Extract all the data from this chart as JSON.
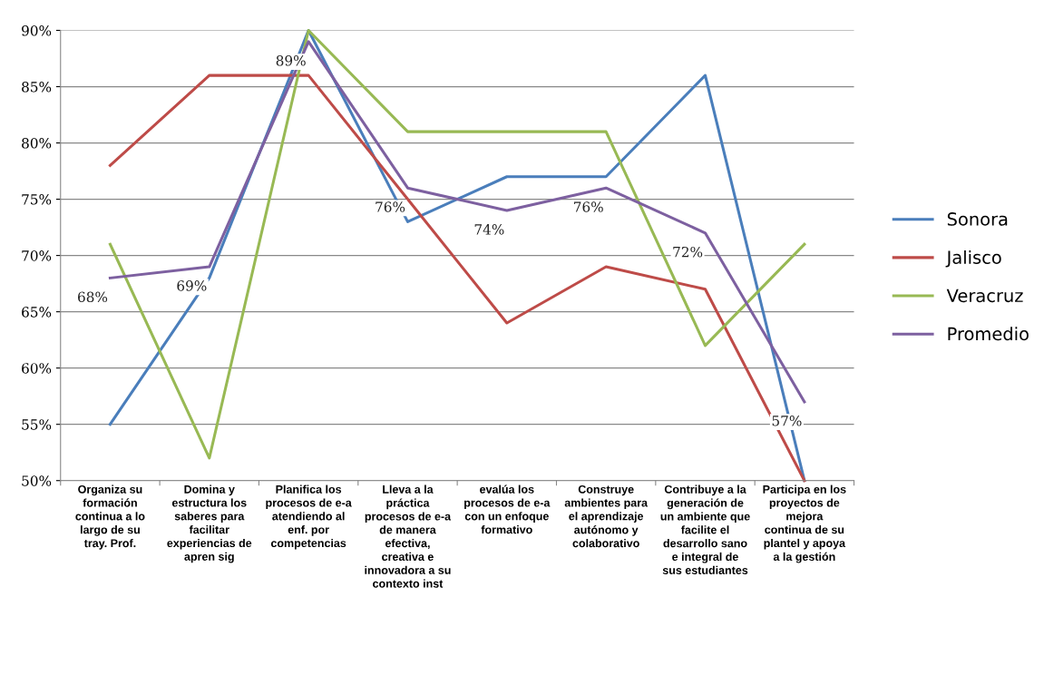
{
  "chart_data": {
    "type": "line",
    "categories": [
      "Organiza su\nformación\ncontinua a lo\nlargo de su\ntray. Prof.",
      "Domina y\nestructura los\nsaberes para\nfacilitar\nexperiencias de\napren sig",
      "Planifica los\nprocesos de e-a\natendiendo al\nenf. por\ncompetencias",
      "Lleva a la\npráctica\nprocesos de e-a\nde manera\nefectiva,\ncreativa e\ninnovadora a su\ncontexto inst",
      "evalúa los\nprocesos de e-a\ncon un enfoque\nformativo",
      "Construye\nambientes para\nel aprendizaje\nautónomo y\ncolaborativo",
      "Contribuye a la\ngeneración de\nun ambiente que\nfacilite el\ndesarrollo sano\ne integral de\nsus estudiantes",
      "Participa en los\nproyectos de\nmejora\ncontinua de su\nplantel y apoya\na la gestión"
    ],
    "series": [
      {
        "name": "Sonora",
        "color": "#4a7ebb",
        "values": [
          55,
          68,
          90,
          73,
          77,
          77,
          86,
          50
        ]
      },
      {
        "name": "Jalisco",
        "color": "#be4b48",
        "values": [
          78,
          86,
          86,
          75,
          64,
          69,
          67,
          50
        ]
      },
      {
        "name": "Veracruz",
        "color": "#98b954",
        "values": [
          71,
          52,
          90,
          81,
          81,
          81,
          62,
          71
        ]
      },
      {
        "name": "Promedio",
        "color": "#7d60a0",
        "values": [
          68,
          69,
          89,
          76,
          74,
          76,
          72,
          57
        ],
        "value_labels": [
          "68%",
          "69%",
          "89%",
          "76%",
          "74%",
          "76%",
          "72%",
          "57%"
        ]
      }
    ],
    "ylim": [
      50,
      90
    ],
    "yticks": [
      {
        "value": 50,
        "label": "50%"
      },
      {
        "value": 55,
        "label": "55%"
      },
      {
        "value": 60,
        "label": "60%"
      },
      {
        "value": 65,
        "label": "65%"
      },
      {
        "value": 70,
        "label": "70%"
      },
      {
        "value": 75,
        "label": "75%"
      },
      {
        "value": 80,
        "label": "80%"
      },
      {
        "value": 85,
        "label": "85%"
      },
      {
        "value": 90,
        "label": "90%"
      }
    ],
    "grid": "y",
    "legend": "right",
    "marker": "none",
    "line_style": "solid"
  }
}
